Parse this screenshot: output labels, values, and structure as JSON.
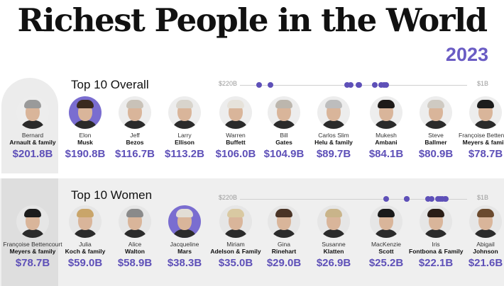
{
  "title": "Richest People in the World",
  "year": "2023",
  "colors": {
    "accent": "#5e50b8",
    "text": "#111111"
  },
  "chart_data": [
    {
      "type": "bar",
      "title": "Top 10 Overall",
      "scale_left": "$220B",
      "scale_right": "$1B",
      "people": [
        {
          "first": "Bernard",
          "last": "Arnault & family",
          "worth_label": "$201.8B",
          "value": 201.8
        },
        {
          "first": "Elon",
          "last": "Musk",
          "worth_label": "$190.8B",
          "value": 190.8
        },
        {
          "first": "Jeff",
          "last": "Bezos",
          "worth_label": "$116.7B",
          "value": 116.7
        },
        {
          "first": "Larry",
          "last": "Ellison",
          "worth_label": "$113.2B",
          "value": 113.2
        },
        {
          "first": "Warren",
          "last": "Buffett",
          "worth_label": "$106.0B",
          "value": 106.0
        },
        {
          "first": "Bill",
          "last": "Gates",
          "worth_label": "$104.9B",
          "value": 104.9
        },
        {
          "first": "Carlos Slim",
          "last": "Helu & family",
          "worth_label": "$89.7B",
          "value": 89.7
        },
        {
          "first": "Mukesh",
          "last": "Ambani",
          "worth_label": "$84.1B",
          "value": 84.1
        },
        {
          "first": "Steve",
          "last": "Ballmer",
          "worth_label": "$80.9B",
          "value": 80.9
        },
        {
          "first": "Françoise Bettencourt",
          "last": "Meyers & family",
          "worth_label": "$78.7B",
          "value": 78.7
        }
      ]
    },
    {
      "type": "bar",
      "title": "Top 10 Women",
      "scale_left": "$220B",
      "scale_right": "$1B",
      "people": [
        {
          "first": "Françoise Bettencourt",
          "last": "Meyers & family",
          "worth_label": "$78.7B",
          "value": 78.7
        },
        {
          "first": "Julia",
          "last": "Koch & family",
          "worth_label": "$59.0B",
          "value": 59.0
        },
        {
          "first": "Alice",
          "last": "Walton",
          "worth_label": "$58.9B",
          "value": 58.9
        },
        {
          "first": "Jacqueline",
          "last": "Mars",
          "worth_label": "$38.3B",
          "value": 38.3
        },
        {
          "first": "Miriam",
          "last": "Adelson & Family",
          "worth_label": "$35.0B",
          "value": 35.0
        },
        {
          "first": "Gina",
          "last": "Rinehart",
          "worth_label": "$29.0B",
          "value": 29.0
        },
        {
          "first": "Susanne",
          "last": "Klatten",
          "worth_label": "$26.9B",
          "value": 26.9
        },
        {
          "first": "MacKenzie",
          "last": "Scott",
          "worth_label": "$25.2B",
          "value": 25.2
        },
        {
          "first": "Iris",
          "last": "Fontbona & Family",
          "worth_label": "$22.1B",
          "value": 22.1
        },
        {
          "first": "Abigail",
          "last": "Johnson",
          "worth_label": "$21.6B",
          "value": 21.6
        }
      ]
    }
  ]
}
